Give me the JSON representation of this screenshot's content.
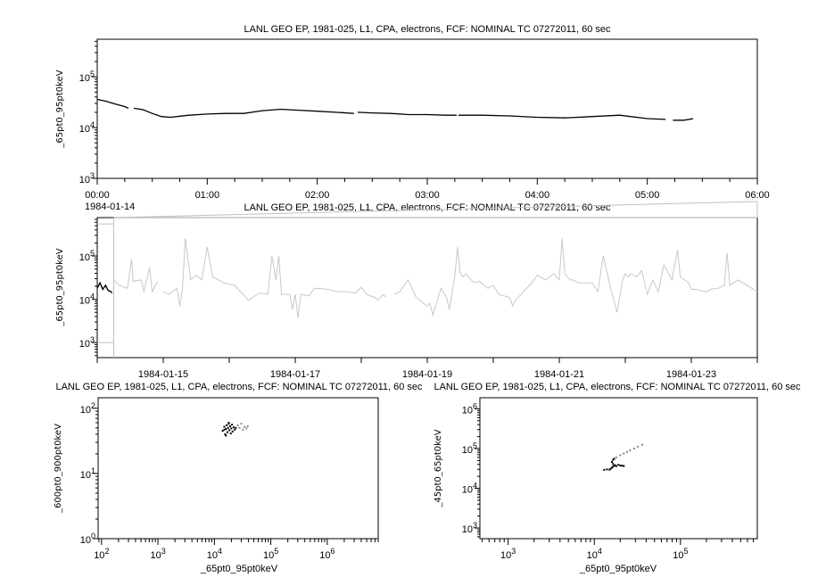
{
  "chart_data": [
    {
      "id": "p1",
      "type": "line",
      "title": "LANL GEO EP, 1981-025, L1, CPA, electrons, FCF: NOMINAL TC 07272011, 60 sec",
      "ylabel": "_65pt0_95pt0keV",
      "xlabel": "",
      "x_scale": "time",
      "y_scale": "log",
      "xlim": [
        "1984-01-14 00:00",
        "1984-01-14 06:00"
      ],
      "ylim": [
        1000,
        550000
      ],
      "x_tick_labels": [
        "00:00",
        "01:00",
        "02:00",
        "03:00",
        "04:00",
        "05:00",
        "06:00"
      ],
      "x_date_label": "1984-01-14",
      "y_tick_labels": [
        "10^3",
        "10^4",
        "10^5"
      ],
      "grid": false,
      "color": "#000000",
      "segments": [
        {
          "x": [
            "00:00",
            "00:05",
            "00:10",
            "00:15",
            "00:17"
          ],
          "y": [
            36000,
            33000,
            29000,
            26000,
            24000
          ]
        },
        {
          "x": [
            "00:20",
            "00:25",
            "00:30",
            "00:35",
            "00:40",
            "00:50",
            "01:00",
            "01:10",
            "01:20",
            "01:30",
            "01:40",
            "01:50",
            "02:00",
            "02:10",
            "02:20"
          ],
          "y": [
            24000,
            22500,
            19000,
            16500,
            16000,
            17500,
            18500,
            19000,
            19000,
            21500,
            23000,
            22000,
            21000,
            20000,
            19000
          ]
        },
        {
          "x": [
            "02:22",
            "02:30",
            "02:40",
            "02:50",
            "03:00",
            "03:10",
            "03:16"
          ],
          "y": [
            20000,
            19500,
            19000,
            18000,
            18000,
            17500,
            17500
          ]
        },
        {
          "x": [
            "03:17",
            "03:30",
            "03:45",
            "04:00",
            "04:15",
            "04:30",
            "04:45",
            "05:00",
            "05:10"
          ],
          "y": [
            17500,
            17500,
            17000,
            16000,
            15500,
            16500,
            17500,
            15000,
            14500
          ]
        },
        {
          "x": [
            "05:14",
            "05:20",
            "05:25"
          ],
          "y": [
            14000,
            14000,
            15000
          ]
        }
      ]
    },
    {
      "id": "p2",
      "type": "line",
      "title": "LANL GEO EP, 1981-025, L1, CPA, electrons, FCF: NOMINAL TC 07272011, 60 sec",
      "ylabel": "_65pt0_95pt0keV",
      "xlabel": "",
      "x_scale": "time",
      "y_scale": "log",
      "xlim": [
        "1984-01-14 00:00",
        "1984-01-24 00:00"
      ],
      "ylim": [
        450,
        770000
      ],
      "x_tick_labels": [
        "1984-01-15",
        "1984-01-17",
        "1984-01-19",
        "1984-01-21",
        "1984-01-23"
      ],
      "y_tick_labels": [
        "10^3",
        "10^4",
        "10^5"
      ],
      "grid": false,
      "highlight": {
        "xlim": [
          "1984-01-14 00:00",
          "1984-01-14 06:00"
        ],
        "ylim": [
          1000,
          550000
        ],
        "color": "#c0c0c0"
      },
      "series": [
        {
          "color": "#000000",
          "segments": [
            {
              "x": [
                "1984-01-14 00:00",
                "1984-01-14 01:00",
                "1984-01-14 02:00",
                "1984-01-14 03:00",
                "1984-01-14 04:00",
                "1984-01-14 05:00",
                "1984-01-14 05:25"
              ],
              "y": [
                18000,
                24000,
                17000,
                21000,
                16000,
                15000,
                14000
              ]
            }
          ]
        },
        {
          "color": "#c8c8c8",
          "segments": [
            {
              "x": [
                "1984-01-14 06:00",
                "1984-01-14 08:00",
                "1984-01-14 11:00",
                "1984-01-14 12:30",
                "1984-01-14 13:00",
                "1984-01-14 16:00",
                "1984-01-14 17:00",
                "1984-01-14 19:00",
                "1984-01-14 20:00",
                "1984-01-14 22:00"
              ],
              "y": [
                28000,
                21000,
                18000,
                85000,
                26000,
                28000,
                15000,
                53000,
                15000,
                26000
              ]
            },
            {
              "x": [
                "1984-01-15 00:00",
                "1984-01-15 02:00",
                "1984-01-15 05:00",
                "1984-01-15 06:00",
                "1984-01-15 07:00",
                "1984-01-15 08:00",
                "1984-01-15 10:00",
                "1984-01-15 12:00",
                "1984-01-15 14:00",
                "1984-01-15 16:00",
                "1984-01-15 18:00",
                "1984-01-15 22:00",
                "1984-01-16 02:00",
                "1984-01-16 05:00",
                "1984-01-16 07:00",
                "1984-01-16 11:00",
                "1984-01-16 14:00",
                "1984-01-16 15:30",
                "1984-01-16 17:00",
                "1984-01-16 18:00",
                "1984-01-16 19:00",
                "1984-01-16 22:00",
                "1984-01-16 23:00",
                "1984-01-17 00:00",
                "1984-01-17 01:00",
                "1984-01-17 02:00",
                "1984-01-17 05:00",
                "1984-01-17 07:00",
                "1984-01-17 12:00",
                "1984-01-17 15:00",
                "1984-01-17 18:00",
                "1984-01-17 22:00",
                "1984-01-18 00:00",
                "1984-01-18 02:00",
                "1984-01-18 05:00",
                "1984-01-18 06:00",
                "1984-01-18 08:00",
                "1984-01-18 09:00"
              ],
              "y": [
                15000,
                13000,
                18000,
                6900,
                18000,
                257000,
                28000,
                36000,
                28000,
                160000,
                33000,
                24000,
                21000,
                13000,
                9500,
                14000,
                13000,
                100000,
                28000,
                100000,
                13000,
                13000,
                5900,
                13000,
                3700,
                13000,
                12000,
                18000,
                17000,
                15000,
                15000,
                14000,
                19000,
                13000,
                11000,
                9500,
                13000,
                11000
              ]
            },
            {
              "x": [
                "1984-01-18 12:00",
                "1984-01-18 14:00",
                "1984-01-18 17:00",
                "1984-01-18 20:00",
                "1984-01-19 00:00",
                "1984-01-19 01:00",
                "1984-01-19 02:00",
                "1984-01-19 05:00",
                "1984-01-19 07:00",
                "1984-01-19 08:00",
                "1984-01-19 10:00",
                "1984-01-19 11:00",
                "1984-01-19 12:00",
                "1984-01-19 13:00",
                "1984-01-19 14:00",
                "1984-01-19 16:00",
                "1984-01-19 17:00",
                "1984-01-19 19:00",
                "1984-01-19 22:00",
                "1984-01-20 00:00",
                "1984-01-20 02:00",
                "1984-01-20 06:00",
                "1984-01-20 07:00",
                "1984-01-20 08:00",
                "1984-01-20 11:00",
                "1984-01-20 14:00",
                "1984-01-20 16:00",
                "1984-01-20 19:00",
                "1984-01-20 22:00",
                "1984-01-21 00:00",
                "1984-01-21 01:00",
                "1984-01-21 02:00",
                "1984-01-21 03:00",
                "1984-01-21 04:00",
                "1984-01-21 05:00",
                "1984-01-21 07:00",
                "1984-01-21 10:00",
                "1984-01-21 12:00",
                "1984-01-21 14:00",
                "1984-01-21 16:00",
                "1984-01-21 19:00",
                "1984-01-21 21:00",
                "1984-01-21 23:00",
                "1984-01-22 00:00",
                "1984-01-22 01:00",
                "1984-01-22 02:00",
                "1984-01-22 04:00",
                "1984-01-22 06:00",
                "1984-01-22 07:00",
                "1984-01-22 08:00",
                "1984-01-22 10:00",
                "1984-01-22 12:00",
                "1984-01-22 14:00",
                "1984-01-22 17:00",
                "1984-01-22 19:00",
                "1984-01-22 20:00",
                "1984-01-22 23:00",
                "1984-01-23 00:00",
                "1984-01-23 02:00",
                "1984-01-23 05:00",
                "1984-01-23 06:00",
                "1984-01-23 07:00",
                "1984-01-23 10:00",
                "1984-01-23 12:00",
                "1984-01-23 13:00",
                "1984-01-23 14:00",
                "1984-01-23 17:00",
                "1984-01-24 00:00"
              ],
              "y": [
                13000,
                15000,
                28000,
                11000,
                6900,
                8100,
                4300,
                18000,
                11000,
                5900,
                33000,
                160000,
                39000,
                33000,
                39000,
                28000,
                24000,
                26000,
                18000,
                21000,
                13000,
                11000,
                7000,
                9500,
                15000,
                24000,
                36000,
                28000,
                39000,
                28000,
                257000,
                39000,
                33000,
                28000,
                28000,
                24000,
                24000,
                24000,
                15000,
                100000,
                15000,
                5000,
                28000,
                39000,
                33000,
                39000,
                33000,
                46000,
                24000,
                13000,
                28000,
                15000,
                62000,
                28000,
                137000,
                33000,
                24000,
                17000,
                17000,
                15000,
                15000,
                17000,
                18000,
                21000,
                117000,
                21000,
                28000,
                15000
              ]
            }
          ]
        }
      ]
    },
    {
      "id": "s1",
      "type": "scatter",
      "title": "LANL GEO EP, 1981-025, L1, CPA, electrons, FCF: NOMINAL TC 07272011, 60 sec",
      "xlabel": "_65pt0_95pt0keV",
      "ylabel": "_600pt0_900pt0keV",
      "x_scale": "log",
      "y_scale": "log",
      "xlim": [
        87,
        8000000
      ],
      "ylim": [
        1,
        145
      ],
      "x_tick_labels": [
        "10^2",
        "10^3",
        "10^4",
        "10^5",
        "10^6"
      ],
      "y_tick_labels": [
        "10^0",
        "10^1",
        "10^2"
      ],
      "grid": false,
      "series": [
        {
          "color": "#000000",
          "points": [
            [
              14000,
              45
            ],
            [
              15000,
              52
            ],
            [
              15500,
              40
            ],
            [
              16000,
              48
            ],
            [
              16500,
              55
            ],
            [
              17000,
              43
            ],
            [
              17500,
              50
            ],
            [
              18000,
              58
            ],
            [
              18500,
              46
            ],
            [
              19000,
              53
            ],
            [
              19500,
              41
            ],
            [
              20000,
              49
            ],
            [
              20500,
              56
            ],
            [
              21000,
              44
            ],
            [
              22000,
              51
            ],
            [
              23000,
              47
            ],
            [
              16000,
              38
            ],
            [
              18000,
              60
            ],
            [
              24000,
              50
            ],
            [
              15000,
              47
            ]
          ]
        },
        {
          "color": "#888888",
          "points": [
            [
              26000,
              55
            ],
            [
              28000,
              50
            ],
            [
              30000,
              58
            ],
            [
              32000,
              47
            ],
            [
              34000,
              52
            ],
            [
              37000,
              49
            ],
            [
              39000,
              53
            ]
          ]
        }
      ]
    },
    {
      "id": "s2",
      "type": "scatter",
      "title": "LANL GEO EP, 1981-025, L1, CPA, electrons, FCF: NOMINAL TC 07272011, 60 sec",
      "xlabel": "_65pt0_95pt0keV",
      "ylabel": "_45pt0_65pt0keV",
      "x_scale": "log",
      "y_scale": "log",
      "xlim": [
        470,
        780000
      ],
      "ylim": [
        540,
        1900000
      ],
      "x_tick_labels": [
        "10^3",
        "10^4",
        "10^5"
      ],
      "y_tick_labels": [
        "10^3",
        "10^4",
        "10^5",
        "10^6"
      ],
      "grid": false,
      "series": [
        {
          "color": "#000000",
          "points": [
            [
              13000,
              29000
            ],
            [
              14000,
              30000
            ],
            [
              15000,
              29500
            ],
            [
              15500,
              31000
            ],
            [
              16000,
              33000
            ],
            [
              16500,
              35000
            ],
            [
              17000,
              37000
            ],
            [
              17500,
              38000
            ],
            [
              18000,
              36000
            ],
            [
              19000,
              39000
            ],
            [
              20000,
              37500
            ],
            [
              21000,
              37000
            ],
            [
              22000,
              36500
            ],
            [
              16500,
              41000
            ],
            [
              16000,
              46000
            ],
            [
              16500,
              52000
            ],
            [
              17000,
              55000
            ]
          ]
        },
        {
          "color": "#888888",
          "points": [
            [
              18000,
              60000
            ],
            [
              20000,
              68000
            ],
            [
              22000,
              75000
            ],
            [
              24000,
              82000
            ],
            [
              26000,
              90000
            ],
            [
              29000,
              100000
            ],
            [
              32000,
              112000
            ],
            [
              36000,
              125000
            ]
          ]
        }
      ]
    }
  ]
}
